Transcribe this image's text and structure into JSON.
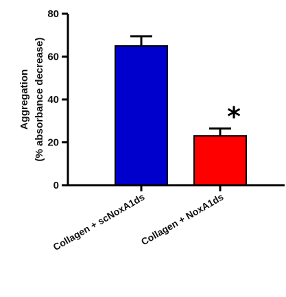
{
  "chart_data": {
    "type": "bar",
    "title": "",
    "xlabel": "",
    "ylabel": [
      "Aggregation",
      "(% absorbance decrease)"
    ],
    "ylim": [
      0,
      80
    ],
    "yticks": [
      0,
      20,
      40,
      60,
      80
    ],
    "categories": [
      "Collagen + scNoxA1ds",
      "Collagen + NoxA1ds"
    ],
    "values": [
      65,
      23
    ],
    "errors": [
      4.5,
      3.5
    ],
    "colors": [
      "#0000cc",
      "#ff0000"
    ],
    "annotations": [
      {
        "category_index": 1,
        "text": "*"
      }
    ],
    "grid": false
  }
}
